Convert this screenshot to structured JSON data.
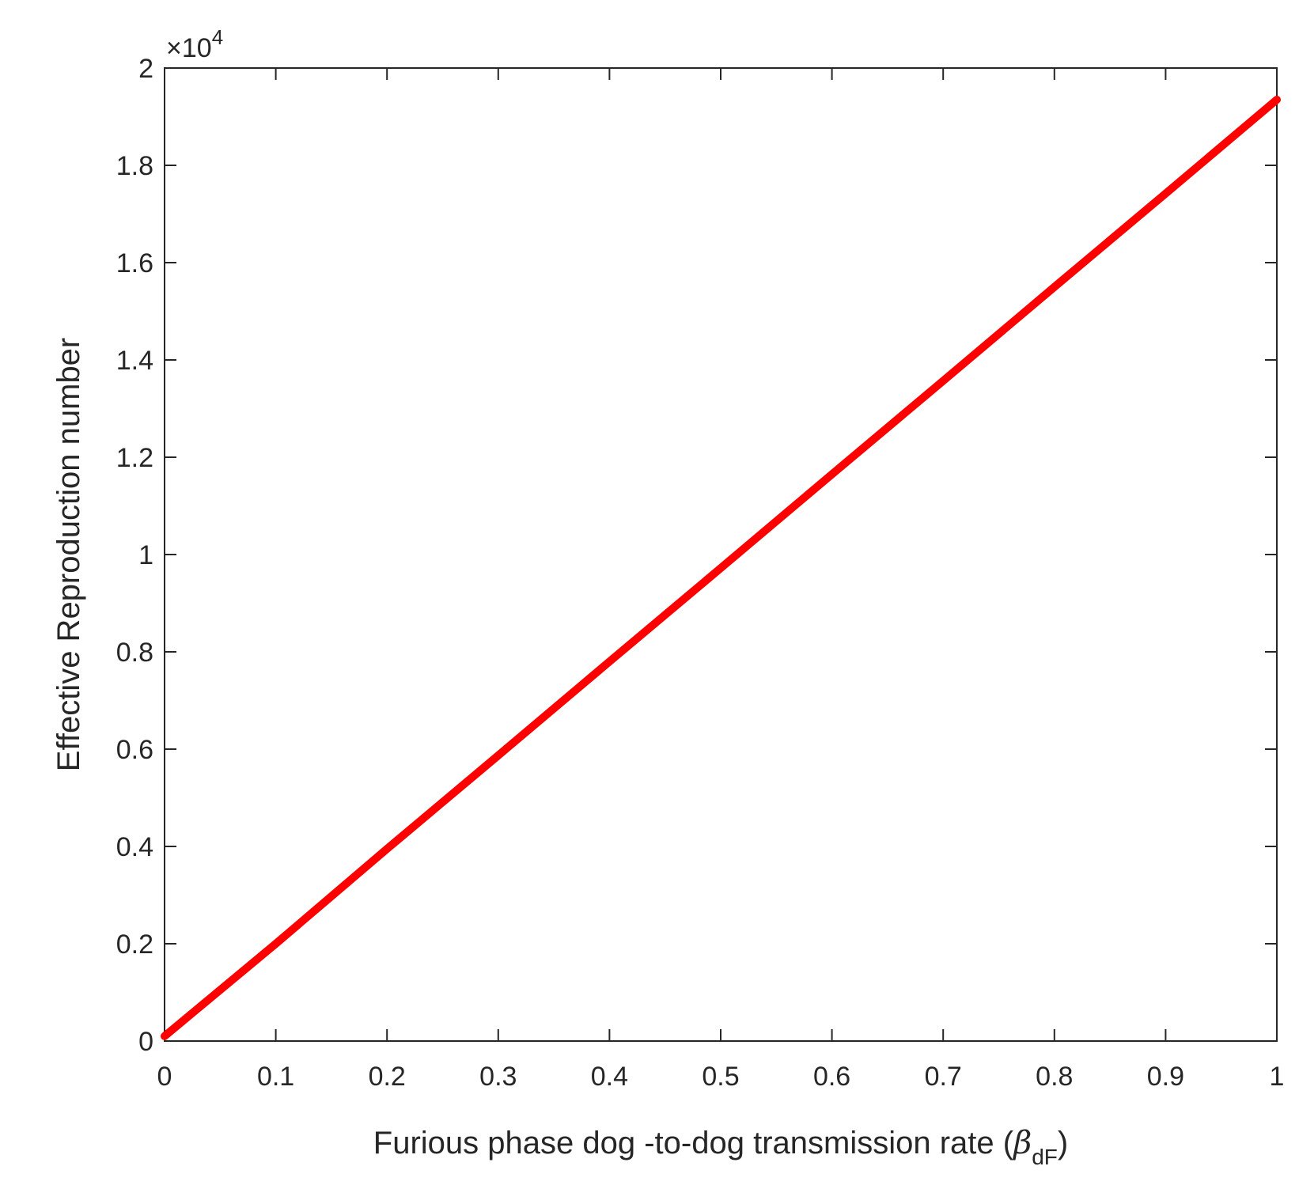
{
  "chart_data": {
    "type": "line",
    "x": [
      0,
      0.1,
      0.2,
      0.3,
      0.4,
      0.5,
      0.6,
      0.7,
      0.8,
      0.9,
      1
    ],
    "values": [
      0.01,
      0.2,
      0.395,
      0.587,
      0.78,
      0.972,
      1.165,
      1.357,
      1.55,
      1.742,
      1.935
    ],
    "color": "#ff0000",
    "xlim": [
      0,
      1
    ],
    "xticks": [
      0,
      0.1,
      0.2,
      0.3,
      0.4,
      0.5,
      0.6,
      0.7,
      0.8,
      0.9,
      1
    ],
    "ylim": [
      0,
      2
    ],
    "yticks": [
      0,
      0.2,
      0.4,
      0.6,
      0.8,
      1,
      1.2,
      1.4,
      1.6,
      1.8,
      2
    ],
    "y_multiplier": {
      "base": "×10",
      "exponent": "4"
    },
    "ylabel": "Effective Reproduction number",
    "xlabel": {
      "text": "Furious phase dog -to-dog transmission rate  (",
      "symbol": "β",
      "subscript": "dF",
      "close": ")"
    },
    "grid": false
  }
}
